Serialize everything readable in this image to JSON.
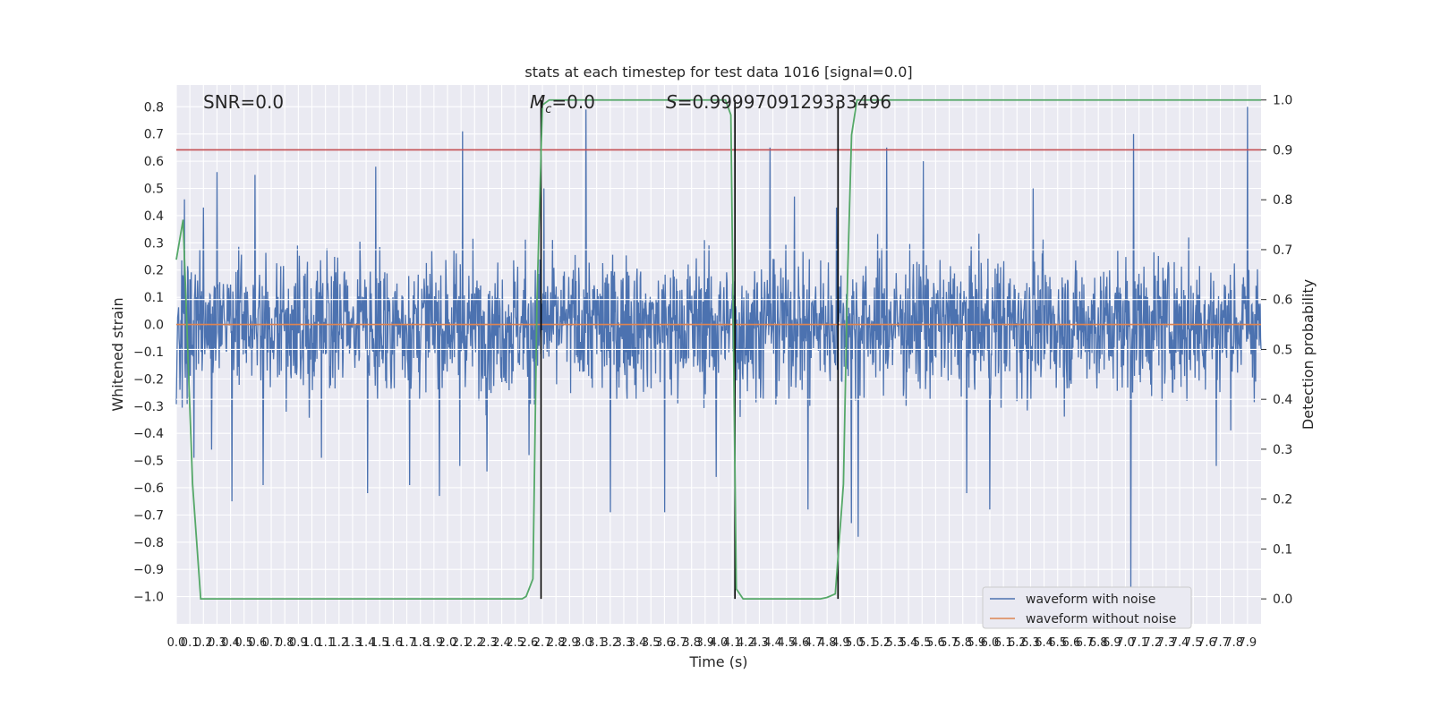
{
  "chart_data": {
    "type": "line",
    "title": "stats at each timestep for test data 1016 [signal=0.0]",
    "xlabel": "Time (s)",
    "ylabel": "Whitened strain",
    "y2label": "Detection probability",
    "xlim": [
      0.0,
      8.0
    ],
    "ylim": [
      -1.1,
      0.88
    ],
    "y2lim": [
      -0.05,
      1.03
    ],
    "xticks": [
      0.0,
      0.1,
      0.2,
      0.3,
      0.4,
      0.5,
      0.6,
      0.7,
      0.8,
      0.9,
      1.0,
      1.1,
      1.2,
      1.3,
      1.4,
      1.5,
      1.6,
      1.7,
      1.8,
      1.9,
      2.0,
      2.1,
      2.2,
      2.3,
      2.4,
      2.5,
      2.6,
      2.7,
      2.8,
      2.9,
      3.0,
      3.1,
      3.2,
      3.3,
      3.4,
      3.5,
      3.6,
      3.7,
      3.8,
      3.9,
      4.0,
      4.1,
      4.2,
      4.3,
      4.4,
      4.5,
      4.6,
      4.7,
      4.8,
      4.9,
      5.0,
      5.1,
      5.2,
      5.3,
      5.4,
      5.5,
      5.6,
      5.7,
      5.8,
      5.9,
      6.0,
      6.1,
      6.2,
      6.3,
      6.4,
      6.5,
      6.6,
      6.7,
      6.8,
      6.9,
      7.0,
      7.1,
      7.2,
      7.3,
      7.4,
      7.5,
      7.6,
      7.7,
      7.8,
      7.9
    ],
    "xtick_labels": [
      "0.0",
      "0.1",
      "0.2",
      "0.3",
      "0.4",
      "0.5",
      "0.6",
      "0.7",
      "0.8",
      "0.9",
      "1.0",
      "1.1",
      "1.2",
      "1.3",
      "1.4",
      "1.5",
      "1.6",
      "1.7",
      "1.8",
      "1.9",
      "2.0",
      "2.1",
      "2.2",
      "2.3",
      "2.4",
      "2.5",
      "2.6",
      "2.7",
      "2.8",
      "2.9",
      "3.0",
      "3.1",
      "3.2",
      "3.3",
      "3.4",
      "3.5",
      "3.6",
      "3.7",
      "3.8",
      "3.9",
      "4.0",
      "4.1",
      "4.2",
      "4.3",
      "4.4",
      "4.5",
      "4.6",
      "4.7",
      "4.8",
      "4.9",
      "5.0",
      "5.1",
      "5.2",
      "5.3",
      "5.4",
      "5.5",
      "5.6",
      "5.7",
      "5.8",
      "5.9",
      "6.0",
      "6.1",
      "6.2",
      "6.3",
      "6.4",
      "6.5",
      "6.6",
      "6.7",
      "6.8",
      "6.9",
      "7.0",
      "7.1",
      "7.2",
      "7.3",
      "7.4",
      "7.5",
      "7.6",
      "7.7",
      "7.8",
      "7.9"
    ],
    "yticks": [
      -1.0,
      -0.9,
      -0.8,
      -0.7,
      -0.6,
      -0.5,
      -0.4,
      -0.3,
      -0.2,
      -0.1,
      0.0,
      0.1,
      0.2,
      0.3,
      0.4,
      0.5,
      0.6,
      0.7,
      0.8
    ],
    "ytick_labels": [
      "−1.0",
      "−0.9",
      "−0.8",
      "−0.7",
      "−0.6",
      "−0.5",
      "−0.4",
      "−0.3",
      "−0.2",
      "−0.1",
      "0.0",
      "0.1",
      "0.2",
      "0.3",
      "0.4",
      "0.5",
      "0.6",
      "0.7",
      "0.8"
    ],
    "y2ticks": [
      0.0,
      0.1,
      0.2,
      0.3,
      0.4,
      0.5,
      0.6,
      0.7,
      0.8,
      0.9,
      1.0
    ],
    "y2tick_labels": [
      "0.0",
      "0.1",
      "0.2",
      "0.3",
      "0.4",
      "0.5",
      "0.6",
      "0.7",
      "0.8",
      "0.9",
      "1.0"
    ],
    "grid": true,
    "legend_position": "lower-right",
    "annotations": {
      "snr": "SNR=0.0",
      "mc": "M",
      "mc_sub": "c",
      "mc_value": "=0.0",
      "s_symbol": "S",
      "s_value": "=0.9999709129333496"
    },
    "series": [
      {
        "name": "waveform with noise",
        "color": "#4c72b0",
        "noise_envelope": {
          "typical_amplitude": 0.28,
          "peak_max": 0.8,
          "peak_min": -0.97
        },
        "spikes": [
          [
            0.06,
            0.46
          ],
          [
            0.13,
            -0.49
          ],
          [
            0.2,
            0.43
          ],
          [
            0.26,
            -0.46
          ],
          [
            0.3,
            0.56
          ],
          [
            0.41,
            -0.65
          ],
          [
            0.58,
            0.55
          ],
          [
            0.64,
            -0.59
          ],
          [
            1.07,
            -0.49
          ],
          [
            1.47,
            0.58
          ],
          [
            1.41,
            -0.62
          ],
          [
            1.72,
            -0.59
          ],
          [
            1.94,
            -0.63
          ],
          [
            2.11,
            0.71
          ],
          [
            2.09,
            -0.52
          ],
          [
            2.29,
            -0.54
          ],
          [
            2.6,
            -0.48
          ],
          [
            2.71,
            0.5
          ],
          [
            3.02,
            0.79
          ],
          [
            3.2,
            -0.69
          ],
          [
            3.6,
            -0.69
          ],
          [
            3.98,
            -0.56
          ],
          [
            4.16,
            -0.34
          ],
          [
            4.38,
            -0.59
          ],
          [
            4.38,
            0.65
          ],
          [
            4.56,
            0.47
          ],
          [
            4.66,
            -0.68
          ],
          [
            4.87,
            0.43
          ],
          [
            5.03,
            -0.78
          ],
          [
            4.98,
            -0.73
          ],
          [
            5.24,
            0.65
          ],
          [
            5.51,
            0.6
          ],
          [
            5.83,
            -0.62
          ],
          [
            6.0,
            -0.68
          ],
          [
            6.32,
            0.5
          ],
          [
            7.06,
            0.7
          ],
          [
            7.04,
            -0.97
          ],
          [
            7.67,
            -0.52
          ],
          [
            7.9,
            0.8
          ]
        ]
      },
      {
        "name": "waveform without noise",
        "color": "#dd8452",
        "x": [
          0.0,
          8.0
        ],
        "y": [
          0.0,
          0.0
        ]
      },
      {
        "color": "#55a868",
        "axis": "right",
        "x": [
          0.0,
          0.05,
          0.12,
          0.18,
          0.25,
          0.5,
          1.0,
          1.5,
          2.0,
          2.5,
          2.55,
          2.58,
          2.63,
          2.66,
          2.7,
          2.75,
          2.8,
          3.5,
          4.0,
          4.05,
          4.09,
          4.13,
          4.18,
          4.25,
          4.5,
          4.75,
          4.8,
          4.86,
          4.92,
          4.95,
          4.98,
          5.02,
          5.05,
          5.1,
          6.0,
          7.0,
          8.0
        ],
        "y": [
          0.68,
          0.76,
          0.23,
          0.0,
          0.0,
          0.0,
          0.0,
          0.0,
          0.0,
          0.0,
          0.0,
          0.005,
          0.04,
          0.6,
          0.99,
          1.0,
          1.0,
          1.0,
          1.0,
          1.0,
          0.97,
          0.02,
          0.0,
          0.0,
          0.0,
          0.0,
          0.003,
          0.01,
          0.23,
          0.64,
          0.93,
          1.0,
          1.0,
          1.0,
          1.0,
          1.0,
          1.0
        ]
      }
    ],
    "threshold": {
      "color": "#c44e52",
      "y2": 0.9
    },
    "vlines": [
      2.69,
      4.12,
      4.88
    ]
  }
}
